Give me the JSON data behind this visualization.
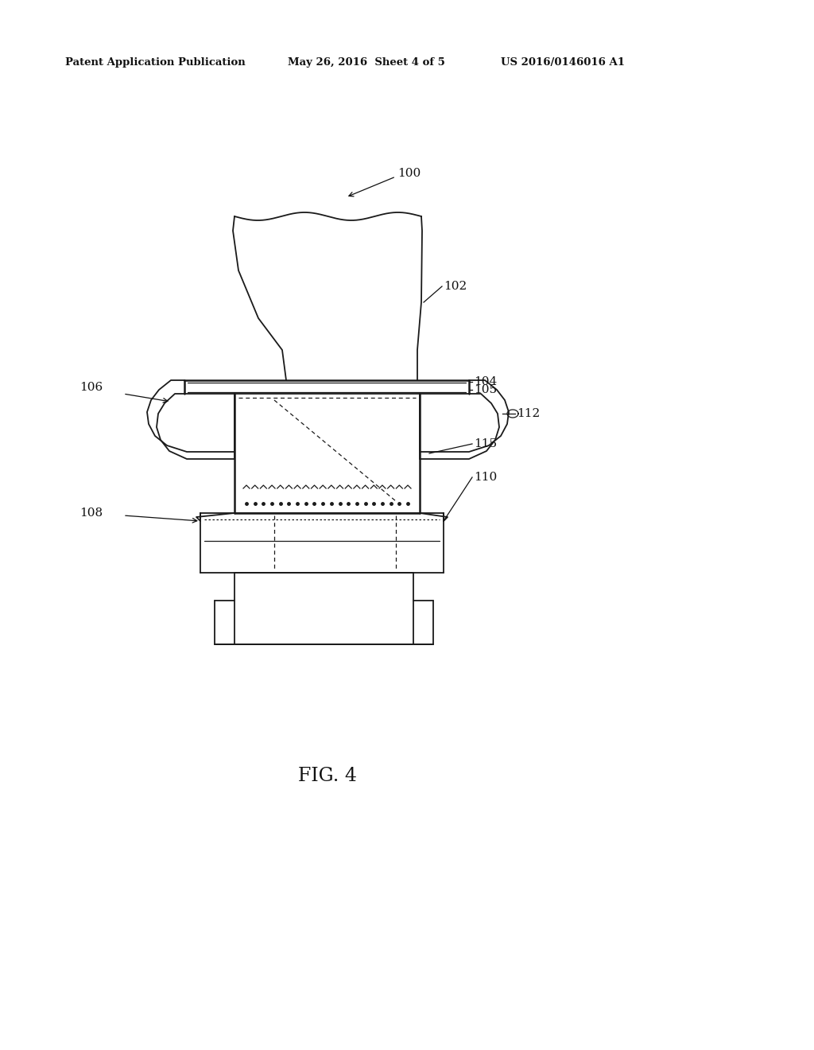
{
  "header_left": "Patent Application Publication",
  "header_mid": "May 26, 2016  Sheet 4 of 5",
  "header_right": "US 2016/0146016 A1",
  "background_color": "#ffffff",
  "line_color": "#1a1a1a",
  "fig_label": "FIG. 4"
}
